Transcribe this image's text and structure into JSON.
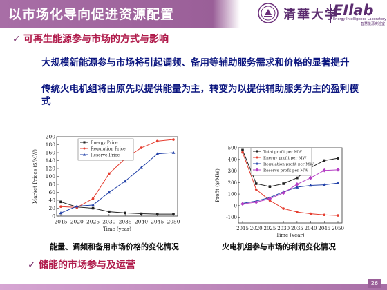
{
  "slide": {
    "title": "以市场化导向促进资源配置",
    "page_number": "26",
    "logo": {
      "tsinghua_text": "清華大学",
      "eilab_text": "EIlab",
      "eilab_sub_en": "Energy Intelligence Laboratory",
      "eilab_sub_cn": "智慧能源实验室"
    },
    "bullets": [
      {
        "mark": "✓",
        "text": "可再生能源参与市场的方式与影响"
      },
      {
        "mark": "✓",
        "text": "储能的市场参与及运营"
      }
    ],
    "paragraphs": [
      "大规模新能源参与市场将引起调频、备用等辅助服务需求和价格的显著提升",
      "传统火电机组将由原先以提供能量为主，转变为以提供辅助服务为主的盈利模式"
    ],
    "captions": [
      "能量、调频和备用市场价格的变化情况",
      "火电机组参与市场的利润变化情况"
    ]
  },
  "chart_data": [
    {
      "type": "line",
      "x": [
        2015,
        2020,
        2025,
        2030,
        2035,
        2040,
        2045,
        2050
      ],
      "xlabel": "Time (year)",
      "ylabel": "Market Prices ($/MW)",
      "ylim": [
        0,
        200
      ],
      "yticks": [
        0,
        20,
        40,
        60,
        80,
        100,
        120,
        140,
        160,
        180,
        200
      ],
      "legend": "top-left",
      "series": [
        {
          "name": "Energy Price",
          "color": "#222222",
          "marker": "square",
          "values": [
            36,
            23,
            20,
            11,
            8,
            6,
            5,
            5
          ]
        },
        {
          "name": "Regulation Price",
          "color": "#e53d2f",
          "marker": "circle",
          "values": [
            24,
            22,
            44,
            107,
            145,
            172,
            189,
            193
          ]
        },
        {
          "name": "Reserve Price",
          "color": "#2140a8",
          "marker": "triangle",
          "values": [
            8,
            25,
            28,
            60,
            88,
            122,
            157,
            160
          ]
        }
      ]
    },
    {
      "type": "line",
      "x": [
        2015,
        2020,
        2025,
        2030,
        2035,
        2040,
        2045,
        2050
      ],
      "xlabel": "Time (year)",
      "ylabel": "Profit ($/MW)",
      "ylim": [
        -150,
        500
      ],
      "yticks": [
        -100,
        0,
        100,
        200,
        300,
        400,
        500
      ],
      "legend": "top-left",
      "series": [
        {
          "name": "Total profit per MW",
          "color": "#222222",
          "marker": "square",
          "values": [
            480,
            190,
            165,
            190,
            240,
            330,
            390,
            410
          ]
        },
        {
          "name": "Energy profit per MW",
          "color": "#e53d2f",
          "marker": "circle",
          "values": [
            460,
            140,
            45,
            -25,
            -55,
            -70,
            -80,
            -85
          ]
        },
        {
          "name": "Regulation profit per MW",
          "color": "#2140a8",
          "marker": "triangle",
          "values": [
            20,
            40,
            70,
            120,
            160,
            175,
            180,
            195
          ]
        },
        {
          "name": "Reserve profit per MW",
          "color": "#b53fc4",
          "marker": "diamond",
          "values": [
            15,
            30,
            60,
            110,
            185,
            240,
            305,
            310
          ]
        }
      ]
    }
  ]
}
